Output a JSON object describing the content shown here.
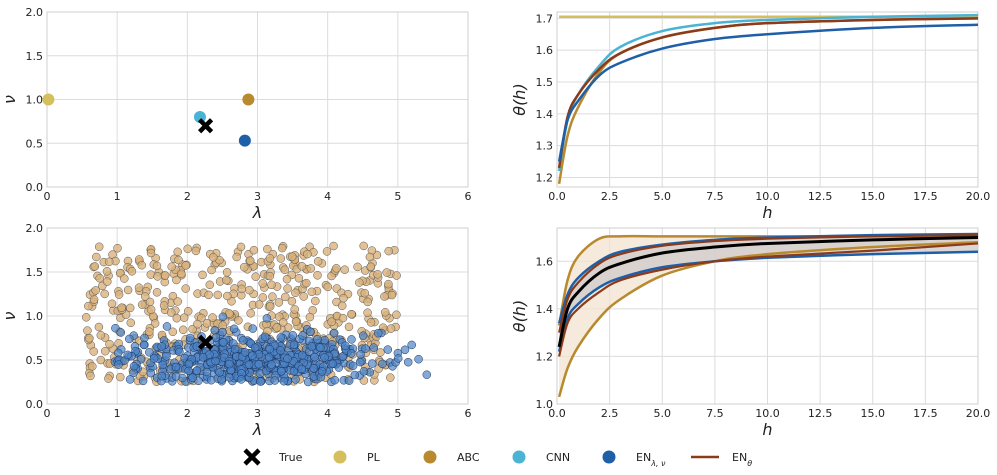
{
  "chart_data": [
    {
      "id": "params_point",
      "type": "scatter",
      "xlabel": "λ",
      "ylabel": "ν",
      "xlim": [
        0,
        6
      ],
      "ylim": [
        0,
        2
      ],
      "xticks": [
        "0",
        "1",
        "2",
        "3",
        "4",
        "5",
        "6"
      ],
      "yticks": [
        "0.0",
        "0.5",
        "1.0",
        "1.5",
        "2.0"
      ],
      "points": [
        {
          "name": "PL",
          "x": 0.02,
          "y": 1.0,
          "color": "#d4bf5c"
        },
        {
          "name": "ABC",
          "x": 2.87,
          "y": 1.0,
          "color": "#b8892e"
        },
        {
          "name": "CNN",
          "x": 2.18,
          "y": 0.8,
          "color": "#4bb3d3"
        },
        {
          "name": "EN",
          "x": 2.82,
          "y": 0.53,
          "color": "#1f5fa8"
        }
      ],
      "true": {
        "x": 2.26,
        "y": 0.7
      }
    },
    {
      "id": "theta_point",
      "type": "line",
      "xlabel": "h",
      "ylabel": "θ(h)",
      "xlim": [
        0,
        20
      ],
      "ylim": [
        1.17,
        1.72
      ],
      "xticks": [
        "0.0",
        "2.5",
        "5.0",
        "7.5",
        "10.0",
        "12.5",
        "15.0",
        "17.5",
        "20.0"
      ],
      "yticks": [
        "1.2",
        "1.3",
        "1.4",
        "1.5",
        "1.6",
        "1.7"
      ],
      "series": [
        {
          "name": "PL",
          "color": "#d4bf5c",
          "x": [
            0.1,
            5,
            10,
            20
          ],
          "y": [
            1.705,
            1.705,
            1.705,
            1.705
          ]
        },
        {
          "name": "ABC",
          "color": "#b8892e",
          "x": [
            0.1,
            0.5,
            1,
            2,
            3,
            5,
            7.5,
            10,
            15,
            20
          ],
          "y": [
            1.18,
            1.33,
            1.42,
            1.53,
            1.59,
            1.64,
            1.67,
            1.685,
            1.695,
            1.7
          ]
        },
        {
          "name": "CNN",
          "color": "#4bb3d3",
          "x": [
            0.1,
            0.5,
            1,
            2,
            3,
            5,
            7.5,
            10,
            15,
            20
          ],
          "y": [
            1.22,
            1.38,
            1.46,
            1.55,
            1.61,
            1.66,
            1.685,
            1.695,
            1.705,
            1.71
          ]
        },
        {
          "name": "EN_theta",
          "color": "#8b3a1a",
          "x": [
            0.1,
            0.5,
            1,
            2,
            3,
            5,
            7.5,
            10,
            15,
            20
          ],
          "y": [
            1.23,
            1.39,
            1.46,
            1.54,
            1.59,
            1.64,
            1.67,
            1.685,
            1.695,
            1.7
          ]
        },
        {
          "name": "EN_lambda_nu",
          "color": "#1f5fa8",
          "x": [
            0.1,
            0.5,
            1,
            2,
            3,
            5,
            7.5,
            10,
            15,
            20
          ],
          "y": [
            1.25,
            1.38,
            1.44,
            1.52,
            1.56,
            1.605,
            1.635,
            1.65,
            1.67,
            1.68
          ]
        }
      ]
    },
    {
      "id": "params_samples",
      "type": "scatter",
      "xlabel": "λ",
      "ylabel": "ν",
      "xlim": [
        0,
        6
      ],
      "ylim": [
        0,
        2
      ],
      "xticks": [
        "0",
        "1",
        "2",
        "3",
        "4",
        "5",
        "6"
      ],
      "yticks": [
        "0.0",
        "0.5",
        "1.0",
        "1.5",
        "2.0"
      ],
      "clouds": [
        {
          "name": "ABC",
          "color": "#d9b27a",
          "n": 520,
          "x_range": [
            0.55,
            5.0
          ],
          "y_range": [
            0.25,
            1.8
          ]
        },
        {
          "name": "EN",
          "color": "#4d85c8",
          "n": 560,
          "x_center": 2.9,
          "x_spread": 1.2,
          "y_center": 0.5,
          "y_spread": 0.15
        }
      ],
      "true": {
        "x": 2.26,
        "y": 0.7
      }
    },
    {
      "id": "theta_samples",
      "type": "area",
      "xlabel": "h",
      "ylabel": "θ(h)",
      "xlim": [
        0,
        20
      ],
      "ylim": [
        1.0,
        1.74
      ],
      "xticks": [
        "0.0",
        "2.5",
        "5.0",
        "7.5",
        "10.0",
        "12.5",
        "15.0",
        "17.5",
        "20.0"
      ],
      "yticks": [
        "1.0",
        "1.2",
        "1.4",
        "1.6"
      ],
      "bands": [
        {
          "name": "ABC",
          "color": "#b8892e",
          "fill": "#f1e3cf",
          "x": [
            0.1,
            0.5,
            1,
            2,
            3,
            5,
            7.5,
            10,
            15,
            20
          ],
          "lower": [
            1.03,
            1.15,
            1.24,
            1.36,
            1.44,
            1.54,
            1.6,
            1.63,
            1.66,
            1.68
          ],
          "upper": [
            1.33,
            1.52,
            1.62,
            1.695,
            1.705,
            1.705,
            1.705,
            1.705,
            1.705,
            1.705
          ]
        },
        {
          "name": "EN",
          "color": "#1f5fa8",
          "fill": "#d0c9c9",
          "x": [
            0.1,
            0.5,
            1,
            2,
            3,
            5,
            7.5,
            10,
            15,
            20
          ],
          "lower": [
            1.22,
            1.36,
            1.42,
            1.49,
            1.53,
            1.575,
            1.6,
            1.615,
            1.63,
            1.64
          ],
          "upper": [
            1.34,
            1.46,
            1.53,
            1.6,
            1.64,
            1.67,
            1.69,
            1.7,
            1.71,
            1.715
          ]
        }
      ],
      "series": [
        {
          "name": "EN_theta_upper",
          "color": "#8b3a1a",
          "x": [
            0.1,
            0.5,
            1,
            2,
            3,
            5,
            7.5,
            10,
            15,
            20
          ],
          "y": [
            1.3,
            1.44,
            1.51,
            1.59,
            1.63,
            1.665,
            1.685,
            1.695,
            1.705,
            1.71
          ]
        },
        {
          "name": "EN_theta_lower",
          "color": "#8b3a1a",
          "x": [
            0.1,
            0.5,
            1,
            2,
            3,
            5,
            7.5,
            10,
            15,
            20
          ],
          "y": [
            1.2,
            1.34,
            1.4,
            1.47,
            1.52,
            1.565,
            1.6,
            1.62,
            1.645,
            1.675
          ]
        },
        {
          "name": "True",
          "color": "#000000",
          "x": [
            0.1,
            0.5,
            1,
            2,
            3,
            5,
            7.5,
            10,
            15,
            20
          ],
          "y": [
            1.24,
            1.4,
            1.47,
            1.55,
            1.59,
            1.635,
            1.66,
            1.675,
            1.69,
            1.7
          ]
        }
      ]
    }
  ],
  "legend": {
    "items": [
      {
        "label": "True",
        "marker": "x",
        "color": "#000000"
      },
      {
        "label": "PL",
        "marker": "dot",
        "color": "#d4bf5c"
      },
      {
        "label": "ABC",
        "marker": "dot",
        "color": "#b8892e"
      },
      {
        "label": "CNN",
        "marker": "dot",
        "color": "#4bb3d3"
      },
      {
        "label": "EN",
        "sub": "λ, ν",
        "marker": "dot",
        "color": "#1f5fa8"
      },
      {
        "label": "EN",
        "sub": "θ",
        "marker": "line",
        "color": "#8b3a1a"
      }
    ]
  }
}
